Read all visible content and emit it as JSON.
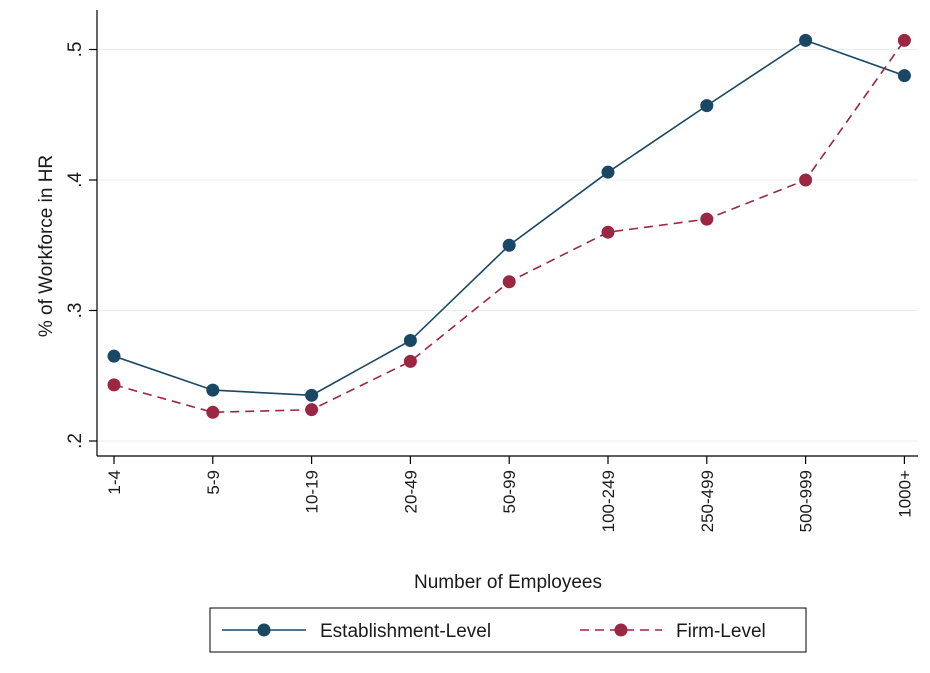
{
  "chart_data": {
    "type": "line",
    "title": "",
    "xlabel": "Number of Employees",
    "ylabel": "% of Workforce in HR",
    "categories": [
      "1-4",
      "5-9",
      "10-19",
      "20-49",
      "50-99",
      "100-249",
      "250-499",
      "500-999",
      "1000+"
    ],
    "ylim": [
      0.2,
      0.51
    ],
    "yticks": [
      0.2,
      0.3,
      0.4,
      0.5
    ],
    "ytick_labels": [
      ".2",
      ".3",
      ".4",
      ".5"
    ],
    "grid": true,
    "legend_position": "bottom",
    "series": [
      {
        "name": "Establishment-Level",
        "values": [
          0.265,
          0.239,
          0.235,
          0.277,
          0.35,
          0.406,
          0.457,
          0.507,
          0.48
        ],
        "color": "#1a4764",
        "dash": "solid"
      },
      {
        "name": "Firm-Level",
        "values": [
          0.243,
          0.222,
          0.224,
          0.261,
          0.322,
          0.36,
          0.37,
          0.4,
          0.507
        ],
        "color": "#9b2743",
        "dash": "dashed"
      }
    ]
  }
}
